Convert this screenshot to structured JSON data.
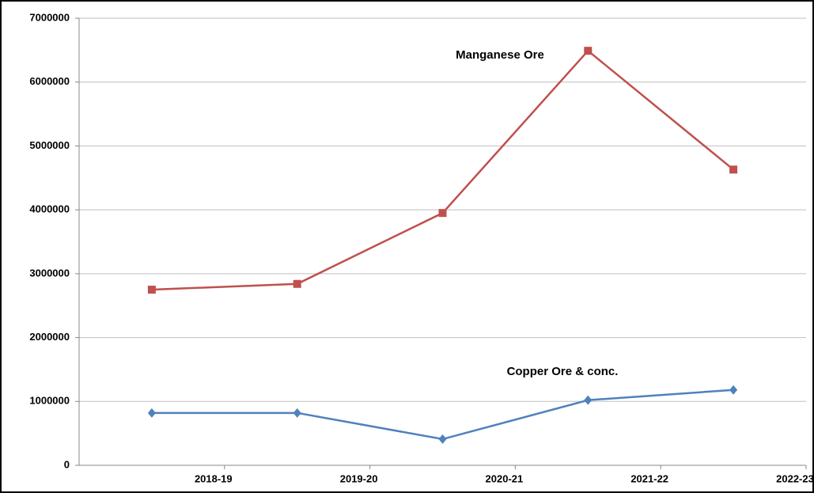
{
  "chart_data": {
    "type": "line",
    "categories": [
      "2018-19",
      "2019-20",
      "2020-21",
      "2021-22",
      "2022-23"
    ],
    "series": [
      {
        "name": "Manganese Ore",
        "color": "#c0504d",
        "marker": "square",
        "values": [
          2750000,
          2840000,
          3950000,
          6490000,
          4630000
        ]
      },
      {
        "name": "Copper Ore & conc.",
        "color": "#4f81bd",
        "marker": "diamond",
        "values": [
          820000,
          820000,
          410000,
          1020000,
          1180000
        ]
      }
    ],
    "ylim": [
      0,
      7000000
    ],
    "yticks": [
      0,
      1000000,
      2000000,
      3000000,
      4000000,
      5000000,
      6000000,
      7000000
    ],
    "grid": true
  }
}
